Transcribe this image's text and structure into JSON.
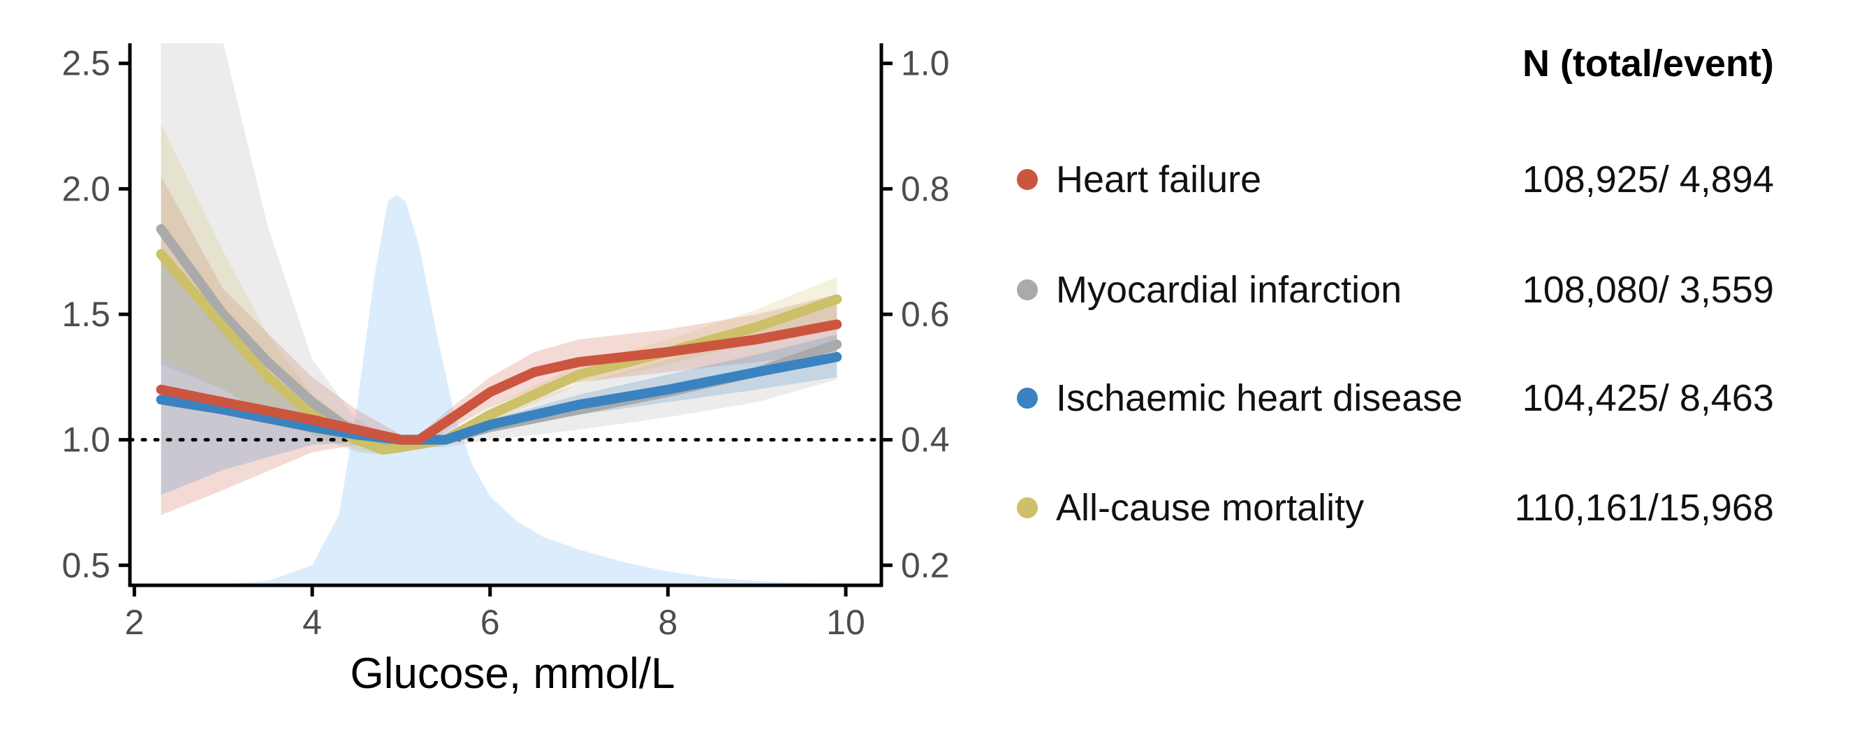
{
  "chart_data": {
    "type": "line",
    "title": "",
    "xlabel": "Glucose, mmol/L",
    "ylabel": "",
    "y2label": "",
    "xlim": [
      1.95,
      10.4
    ],
    "ylim": [
      0.42,
      2.58
    ],
    "y2lim": [
      0.168,
      1.032
    ],
    "x_ticks": [
      "2",
      "4",
      "6",
      "8",
      "10"
    ],
    "y_ticks": [
      "0.5",
      "1.0",
      "1.5",
      "2.0",
      "2.5"
    ],
    "y2_ticks": [
      "0.2",
      "0.4",
      "0.6",
      "0.8",
      "1.0"
    ],
    "reference_line_y": 1.0,
    "legend_title": "N (total/event)",
    "legend_position": "right",
    "series": [
      {
        "name": "Heart failure",
        "counts": "108,925/ 4,894",
        "color": "#cc5540",
        "x": [
          2.3,
          3.0,
          4.0,
          4.5,
          5.0,
          5.2,
          5.5,
          6.0,
          6.5,
          7.0,
          8.0,
          9.0,
          9.9
        ],
        "y": [
          1.2,
          1.15,
          1.08,
          1.04,
          1.0,
          1.0,
          1.07,
          1.19,
          1.27,
          1.31,
          1.35,
          1.4,
          1.46
        ],
        "lower": [
          0.7,
          0.8,
          0.95,
          0.98,
          0.98,
          0.98,
          1.03,
          1.13,
          1.2,
          1.23,
          1.27,
          1.31,
          1.35
        ],
        "upper": [
          2.05,
          1.6,
          1.25,
          1.12,
          1.02,
          1.02,
          1.11,
          1.25,
          1.35,
          1.4,
          1.44,
          1.5,
          1.58
        ]
      },
      {
        "name": "Myocardial infarction",
        "counts": "108,080/ 3,559",
        "color": "#aaaaaa",
        "x": [
          2.3,
          3.0,
          3.5,
          4.0,
          4.5,
          4.8,
          5.0,
          5.5,
          6.0,
          7.0,
          8.0,
          9.0,
          9.9
        ],
        "y": [
          1.84,
          1.5,
          1.31,
          1.15,
          1.02,
          0.98,
          0.99,
          1.0,
          1.05,
          1.12,
          1.19,
          1.27,
          1.38
        ],
        "lower": [
          1.3,
          1.2,
          1.1,
          1.02,
          0.95,
          0.94,
          0.97,
          0.97,
          1.0,
          1.04,
          1.09,
          1.15,
          1.24
        ],
        "upper": [
          2.6,
          2.6,
          1.85,
          1.32,
          1.08,
          1.02,
          1.01,
          1.03,
          1.11,
          1.22,
          1.32,
          1.43,
          1.56
        ]
      },
      {
        "name": "Ischaemic heart disease",
        "counts": "104,425/ 8,463",
        "color": "#3a83c0",
        "x": [
          2.3,
          3.0,
          4.0,
          4.5,
          5.0,
          5.5,
          6.0,
          7.0,
          8.0,
          9.0,
          9.9
        ],
        "y": [
          1.16,
          1.12,
          1.05,
          1.02,
          1.0,
          1.0,
          1.06,
          1.14,
          1.2,
          1.27,
          1.33
        ],
        "lower": [
          0.78,
          0.88,
          0.98,
          0.99,
          0.99,
          0.99,
          1.04,
          1.1,
          1.15,
          1.2,
          1.25
        ],
        "upper": [
          1.75,
          1.42,
          1.13,
          1.06,
          1.01,
          1.01,
          1.08,
          1.18,
          1.26,
          1.34,
          1.42
        ]
      },
      {
        "name": "All-cause mortality",
        "counts": "110,161/15,968",
        "color": "#ccc068",
        "x": [
          2.3,
          3.0,
          3.5,
          4.0,
          4.5,
          4.8,
          5.0,
          5.5,
          6.0,
          7.0,
          8.0,
          9.0,
          9.9
        ],
        "y": [
          1.74,
          1.45,
          1.25,
          1.1,
          1.0,
          0.96,
          0.97,
          1.0,
          1.1,
          1.26,
          1.35,
          1.45,
          1.56
        ],
        "lower": [
          1.33,
          1.2,
          1.1,
          1.02,
          0.96,
          0.94,
          0.96,
          0.99,
          1.07,
          1.22,
          1.3,
          1.39,
          1.48
        ],
        "upper": [
          2.26,
          1.75,
          1.42,
          1.18,
          1.05,
          0.99,
          0.99,
          1.02,
          1.13,
          1.3,
          1.4,
          1.52,
          1.65
        ]
      }
    ],
    "density": {
      "color": "#cfe6fb",
      "x": [
        2.3,
        3.0,
        3.5,
        4.0,
        4.3,
        4.5,
        4.7,
        4.85,
        4.95,
        5.05,
        5.2,
        5.4,
        5.6,
        5.8,
        6.0,
        6.3,
        6.6,
        7.0,
        7.5,
        8.0,
        8.5,
        9.0,
        9.5,
        9.9
      ],
      "y2": [
        0.17,
        0.17,
        0.175,
        0.2,
        0.28,
        0.45,
        0.66,
        0.78,
        0.79,
        0.78,
        0.71,
        0.57,
        0.44,
        0.36,
        0.31,
        0.27,
        0.245,
        0.225,
        0.205,
        0.19,
        0.18,
        0.175,
        0.172,
        0.17
      ]
    }
  }
}
